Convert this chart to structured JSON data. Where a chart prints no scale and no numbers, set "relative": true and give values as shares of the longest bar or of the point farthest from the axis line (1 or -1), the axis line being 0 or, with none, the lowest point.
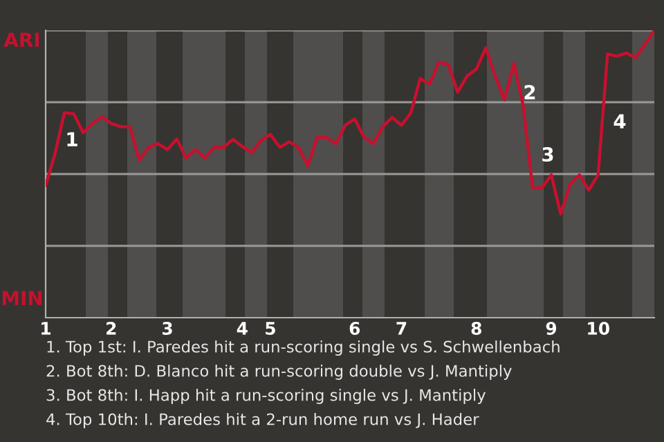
{
  "chart_data": {
    "type": "line",
    "relative": true,
    "categories": [
      "1",
      null,
      null,
      null,
      null,
      null,
      null,
      "2",
      null,
      null,
      null,
      null,
      null,
      "3",
      null,
      null,
      null,
      null,
      null,
      null,
      null,
      "4",
      null,
      null,
      "5",
      null,
      null,
      null,
      null,
      null,
      null,
      null,
      null,
      "6",
      null,
      null,
      null,
      null,
      "7",
      null,
      null,
      null,
      null,
      null,
      null,
      null,
      "8",
      null,
      null,
      null,
      null,
      null,
      null,
      null,
      "9",
      null,
      null,
      null,
      null,
      "10",
      null,
      null,
      null,
      null,
      null,
      null
    ],
    "series": [
      {
        "color": "#c8102e",
        "values": [
          0.46,
          0.57,
          0.713,
          0.71,
          0.644,
          0.676,
          0.699,
          0.676,
          0.665,
          0.665,
          0.548,
          0.593,
          0.606,
          0.585,
          0.622,
          0.556,
          0.585,
          0.556,
          0.593,
          0.593,
          0.62,
          0.596,
          0.574,
          0.617,
          0.638,
          0.593,
          0.612,
          0.593,
          0.529,
          0.628,
          0.628,
          0.606,
          0.67,
          0.692,
          0.628,
          0.606,
          0.665,
          0.697,
          0.67,
          0.713,
          0.833,
          0.813,
          0.889,
          0.881,
          0.785,
          0.841,
          0.865,
          0.939,
          0.841,
          0.758,
          0.885,
          0.737,
          0.452,
          0.452,
          0.497,
          0.361,
          0.465,
          0.497,
          0.444,
          0.497,
          0.918,
          0.91,
          0.921,
          0.905,
          0.95,
          1
        ]
      }
    ],
    "grid": false,
    "marker": "none",
    "line_style": "solid",
    "ref_lines": [
      {
        "axis": "y",
        "value": 0.25,
        "color": "#9a9a9a"
      },
      {
        "axis": "y",
        "value": 0.5,
        "color": "#9a9a9a"
      },
      {
        "axis": "y",
        "value": 0.75,
        "color": "#9a9a9a"
      },
      {
        "axis": "y",
        "value": 1,
        "color": "#9a9a9a"
      }
    ],
    "annotations": [
      "ARI",
      "MIN",
      "1",
      "2",
      "3",
      "4",
      "1. Top 1st: I. Paredes hit a run-scoring single vs S. Schwellenbach",
      "2. Bot 8th: D. Blanco hit a run-scoring double vs J. Mantiply",
      "3. Bot 8th: I. Happ hit a run-scoring single vs J. Mantiply",
      "4. Top 10th: I. Paredes hit a 2-run home run vs J. Hader"
    ]
  }
}
